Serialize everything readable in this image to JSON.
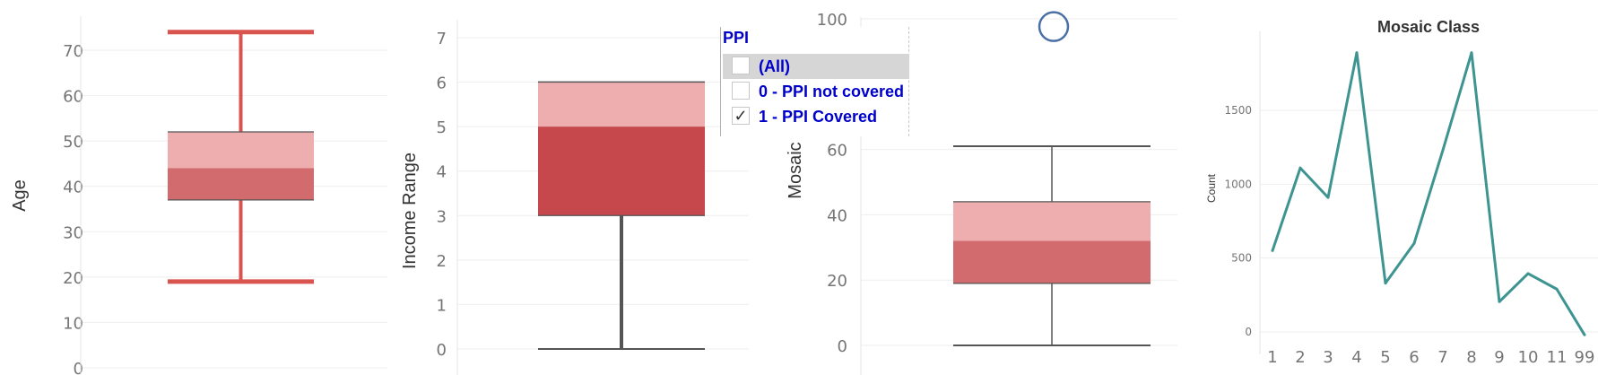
{
  "colors": {
    "upper_box_light": "#eeaeb0",
    "lower_box_age": "#d16b6e",
    "lower_box_income": "#c7484c",
    "whisker_age": "#d9534f",
    "whisker_dark": "#555555",
    "line_color": "#3d9490",
    "filter_text": "#0000cc"
  },
  "chart_data": [
    {
      "type": "box",
      "title": "",
      "ylabel": "Age",
      "ylim": [
        0,
        78
      ],
      "yticks": [
        0,
        10,
        20,
        30,
        40,
        50,
        60,
        70
      ],
      "grid": true,
      "box": {
        "min": 19,
        "q1": 37,
        "median": 44,
        "q3": 52,
        "max": 74
      }
    },
    {
      "type": "box",
      "title": "",
      "ylabel": "Income Range",
      "ylim": [
        0,
        7
      ],
      "yticks": [
        0,
        1,
        2,
        3,
        4,
        5,
        6,
        7
      ],
      "grid": true,
      "box": {
        "min": 0,
        "q1": 3,
        "median": 5,
        "q3": 6,
        "max": 6
      }
    },
    {
      "type": "box",
      "title": "",
      "ylabel": "Mosaic",
      "ylim": [
        0,
        100
      ],
      "yticks": [
        0,
        20,
        40,
        60,
        100
      ],
      "grid": true,
      "box": {
        "min": 0,
        "q1": 19,
        "median": 32,
        "q3": 44,
        "max": 61
      },
      "outliers": [
        99
      ]
    },
    {
      "type": "line",
      "title": "Mosaic Class",
      "ylabel": "Count",
      "xlabel": "",
      "categories": [
        "1",
        "2",
        "3",
        "4",
        "5",
        "6",
        "7",
        "8",
        "9",
        "10",
        "11",
        "99"
      ],
      "values": [
        550,
        1110,
        910,
        1890,
        330,
        600,
        1230,
        1890,
        205,
        395,
        290,
        -20
      ],
      "ylim": [
        -120,
        2040
      ],
      "yticks": [
        0,
        500,
        1000,
        1500
      ],
      "grid": true
    }
  ],
  "filter": {
    "title": "PPI",
    "items": [
      {
        "label": "(All)",
        "checked": false,
        "selected": true
      },
      {
        "label": "0 - PPI not covered",
        "checked": false,
        "selected": false
      },
      {
        "label": "1 - PPI Covered",
        "checked": true,
        "selected": false
      }
    ]
  }
}
